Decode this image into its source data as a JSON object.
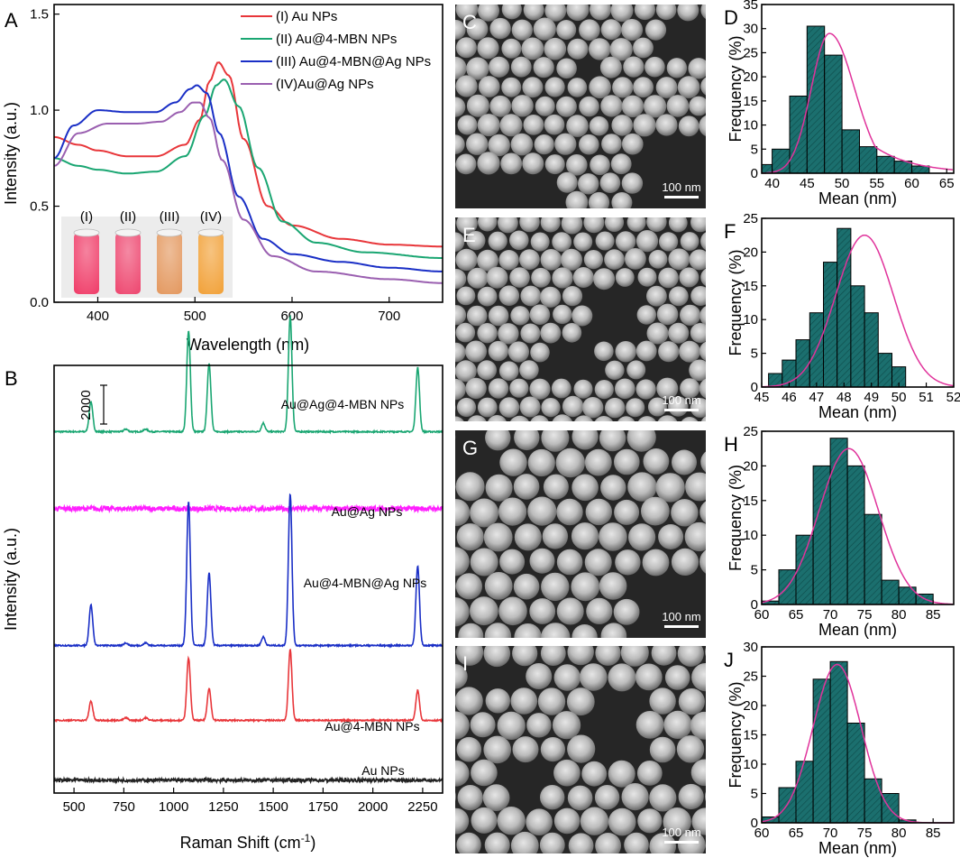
{
  "panelA": {
    "letter": "A",
    "xlabel": "Wavelength (nm)",
    "ylabel": "Intensity (a.u.)",
    "xlim": [
      355,
      755
    ],
    "ylim": [
      0,
      1.55
    ],
    "xticks": [
      400,
      500,
      600,
      700
    ],
    "yticks": [
      0.0,
      0.5,
      1.0,
      1.5
    ],
    "ytick_labels": [
      "0.0",
      "0.5",
      "1.0",
      "1.5"
    ],
    "legend": [
      {
        "label": "(I) Au NPs",
        "color": "#e8363a"
      },
      {
        "label": "(II) Au@4-MBN NPs",
        "color": "#1aa672"
      },
      {
        "label": "(III) Au@4-MBN@Ag NPs",
        "color": "#1a2fc6"
      },
      {
        "label": "(IV)Au@Ag NPs",
        "color": "#9a5fb0"
      }
    ],
    "inset": {
      "labels": [
        "(I)",
        "(II)",
        "(III)",
        "(IV)"
      ],
      "colors": [
        "#f0406b",
        "#ee4a72",
        "#e49a62",
        "#f2a33c"
      ]
    }
  },
  "panelB": {
    "letter": "B",
    "xlabel": "Raman Shift (cm",
    "xlabel_sup": "-1",
    "xlabel_end": ")",
    "ylabel": "Intensity (a.u.)",
    "xlim": [
      400,
      2350
    ],
    "xticks": [
      500,
      750,
      1000,
      1250,
      1500,
      1750,
      2000,
      2250
    ],
    "scalebar": "2000",
    "spectra": [
      {
        "label": "Au@Ag@4-MBN NPs",
        "color": "#1aa672"
      },
      {
        "label": "Au@Ag NPs",
        "color": "#ff1fff"
      },
      {
        "label": "Au@4-MBN@Ag NPs",
        "color": "#1a2fc6"
      },
      {
        "label": "Au@4-MBN NPs",
        "color": "#e8363a"
      },
      {
        "label": "Au NPs",
        "color": "#222222"
      }
    ]
  },
  "sem": [
    {
      "letter": "C",
      "scale": "100 nm"
    },
    {
      "letter": "E",
      "scale": "100 nm"
    },
    {
      "letter": "G",
      "scale": "100 nm"
    },
    {
      "letter": "I",
      "scale": "100 nm"
    }
  ],
  "hist_common": {
    "xlabel": "Mean (nm)",
    "ylabel": "Frequency (%)",
    "bar_color": "#1b6f6e",
    "fit_color": "#e0339b"
  },
  "chart_data": [
    {
      "type": "line",
      "title": "A",
      "xlabel": "Wavelength (nm)",
      "ylabel": "Intensity (a.u.)",
      "series": [
        {
          "name": "(I) Au NPs",
          "x": [
            355,
            380,
            400,
            430,
            460,
            490,
            505,
            515,
            524,
            535,
            550,
            575,
            600,
            650,
            700,
            755
          ],
          "values": [
            0.86,
            0.82,
            0.79,
            0.76,
            0.76,
            0.82,
            0.95,
            1.15,
            1.25,
            1.18,
            0.85,
            0.5,
            0.4,
            0.33,
            0.3,
            0.29
          ]
        },
        {
          "name": "(II) Au@4-MBN NPs",
          "x": [
            355,
            380,
            400,
            430,
            460,
            490,
            510,
            522,
            530,
            545,
            565,
            590,
            625,
            675,
            755
          ],
          "values": [
            0.75,
            0.71,
            0.69,
            0.67,
            0.68,
            0.76,
            0.97,
            1.13,
            1.16,
            1.02,
            0.7,
            0.42,
            0.31,
            0.26,
            0.23
          ]
        },
        {
          "name": "(III) Au@4-MBN@Ag NPs",
          "x": [
            355,
            375,
            400,
            430,
            460,
            480,
            495,
            502,
            512,
            525,
            545,
            570,
            600,
            650,
            700,
            755
          ],
          "values": [
            0.75,
            0.92,
            1.0,
            0.99,
            0.99,
            1.04,
            1.11,
            1.13,
            1.09,
            0.88,
            0.55,
            0.33,
            0.25,
            0.21,
            0.18,
            0.16
          ]
        },
        {
          "name": "(IV)Au@Ag NPs",
          "x": [
            355,
            380,
            410,
            440,
            465,
            485,
            498,
            505,
            515,
            528,
            550,
            580,
            625,
            700,
            755
          ],
          "values": [
            0.71,
            0.88,
            0.93,
            0.93,
            0.94,
            0.99,
            1.04,
            1.04,
            0.96,
            0.74,
            0.43,
            0.24,
            0.16,
            0.12,
            0.1
          ]
        }
      ]
    },
    {
      "type": "line",
      "title": "B",
      "xlabel": "Raman Shift (cm-1)",
      "ylabel": "Intensity (a.u.)",
      "xlim": [
        400,
        2350
      ],
      "series": [
        {
          "name": "Au@Ag@4-MBN NPs",
          "baseline": 0.845,
          "peaks": [
            [
              585,
              0.07
            ],
            [
              1075,
              0.235
            ],
            [
              1178,
              0.16
            ],
            [
              1450,
              0.02
            ],
            [
              1585,
              0.27
            ],
            [
              2225,
              0.15
            ]
          ]
        },
        {
          "name": "Au@Ag NPs",
          "baseline": 0.665,
          "peaks": []
        },
        {
          "name": "Au@4-MBN@Ag NPs",
          "baseline": 0.345,
          "peaks": [
            [
              585,
              0.095
            ],
            [
              1075,
              0.335
            ],
            [
              1178,
              0.17
            ],
            [
              1450,
              0.02
            ],
            [
              1585,
              0.355
            ],
            [
              2225,
              0.185
            ]
          ]
        },
        {
          "name": "Au@4-MBN NPs",
          "baseline": 0.17,
          "peaks": [
            [
              585,
              0.045
            ],
            [
              1075,
              0.145
            ],
            [
              1178,
              0.075
            ],
            [
              1585,
              0.165
            ],
            [
              2225,
              0.07
            ]
          ]
        },
        {
          "name": "Au NPs",
          "baseline": 0.03,
          "peaks": []
        }
      ]
    },
    {
      "type": "bar",
      "title": "D",
      "xlabel": "Mean (nm)",
      "ylabel": "Frequency (%)",
      "xlim": [
        38.5,
        66
      ],
      "ylim": [
        0,
        35
      ],
      "xticks": [
        40,
        45,
        50,
        55,
        60,
        65
      ],
      "yticks": [
        0,
        5,
        10,
        15,
        20,
        25,
        30,
        35
      ],
      "bin_width": 2.5,
      "x": [
        38.75,
        41.25,
        43.75,
        46.25,
        48.75,
        51.25,
        53.75,
        56.25,
        58.75,
        61.25,
        63.75
      ],
      "values": [
        1.8,
        5.0,
        16.0,
        30.5,
        24.5,
        9.0,
        5.5,
        3.5,
        2.5,
        1.5,
        0
      ],
      "fit": {
        "type": "lognormal-like",
        "peak": 48.2,
        "amplitude": 29.0
      }
    },
    {
      "type": "bar",
      "title": "F",
      "xlabel": "Mean (nm)",
      "ylabel": "Frequency (%)",
      "xlim": [
        45,
        52
      ],
      "ylim": [
        0,
        25
      ],
      "xticks": [
        45,
        46,
        47,
        48,
        49,
        50,
        51,
        52
      ],
      "yticks": [
        0,
        5,
        10,
        15,
        20,
        25
      ],
      "bin_width": 0.5,
      "x": [
        45.5,
        46.0,
        46.5,
        47.0,
        47.5,
        48.0,
        48.5,
        49.0,
        49.5,
        50.0,
        50.5,
        51.0,
        51.5
      ],
      "values": [
        2.0,
        4.0,
        7.0,
        11.0,
        18.5,
        23.5,
        15.0,
        11.0,
        5.0,
        3.0,
        0,
        0,
        0
      ],
      "fit": {
        "type": "gaussian",
        "center": 48.75,
        "sigma": 1.05,
        "amplitude": 22.5
      }
    },
    {
      "type": "bar",
      "title": "H",
      "xlabel": "Mean (nm)",
      "ylabel": "Frequency (%)",
      "xlim": [
        60,
        88
      ],
      "ylim": [
        0,
        25
      ],
      "xticks": [
        60,
        65,
        70,
        75,
        80,
        85
      ],
      "yticks": [
        0,
        5,
        10,
        15,
        20,
        25
      ],
      "bin_width": 2.5,
      "x": [
        61.25,
        63.75,
        66.25,
        68.75,
        71.25,
        73.75,
        76.25,
        78.75,
        81.25,
        83.75,
        86.25
      ],
      "values": [
        0.5,
        5.0,
        10.0,
        20.0,
        24.0,
        20.0,
        13.0,
        3.5,
        2.5,
        1.5,
        0
      ],
      "fit": {
        "type": "gaussian",
        "center": 72.7,
        "sigma": 4.3,
        "amplitude": 22.5
      }
    },
    {
      "type": "bar",
      "title": "J",
      "xlabel": "Mean (nm)",
      "ylabel": "Frequency (%)",
      "xlim": [
        60,
        88
      ],
      "ylim": [
        0,
        30
      ],
      "xticks": [
        60,
        65,
        70,
        75,
        80,
        85
      ],
      "yticks": [
        0,
        5,
        10,
        15,
        20,
        25,
        30
      ],
      "bin_width": 2.5,
      "x": [
        61.25,
        63.75,
        66.25,
        68.75,
        71.25,
        73.75,
        76.25,
        78.75,
        81.25,
        83.75,
        86.25
      ],
      "values": [
        1.0,
        6.0,
        10.5,
        24.5,
        27.5,
        17.0,
        7.5,
        5.0,
        0.5,
        0,
        0
      ],
      "fit": {
        "type": "gaussian",
        "center": 71.0,
        "sigma": 3.5,
        "amplitude": 27.0
      }
    }
  ],
  "hist_letters": [
    "D",
    "F",
    "H",
    "J"
  ]
}
